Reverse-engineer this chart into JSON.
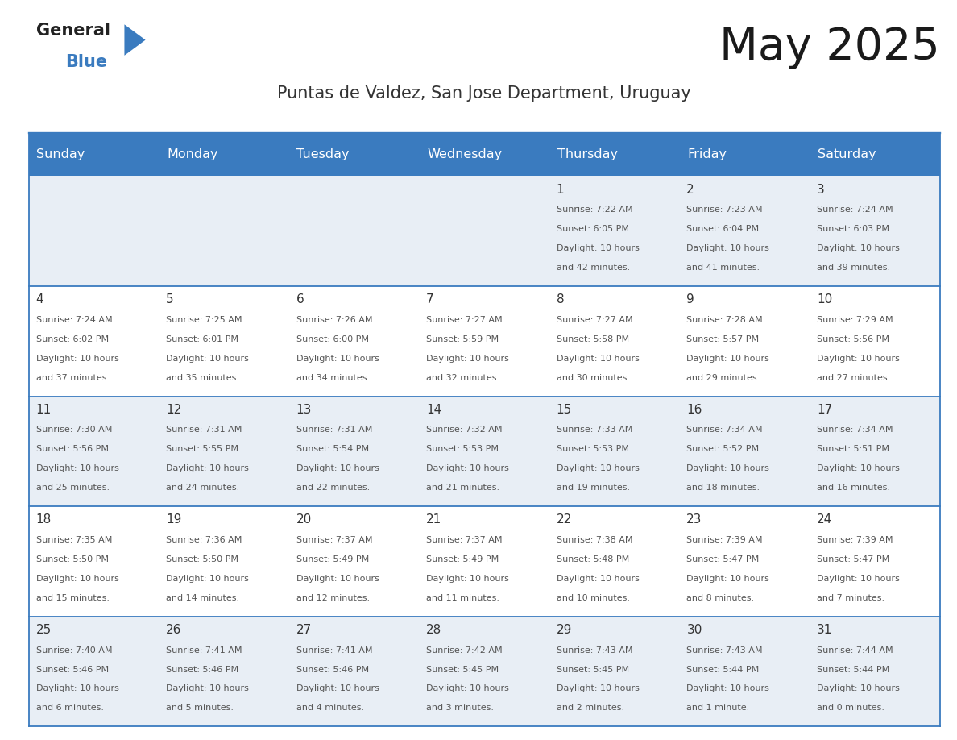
{
  "title": "May 2025",
  "subtitle": "Puntas de Valdez, San Jose Department, Uruguay",
  "days_of_week": [
    "Sunday",
    "Monday",
    "Tuesday",
    "Wednesday",
    "Thursday",
    "Friday",
    "Saturday"
  ],
  "header_bg": "#3a7bbf",
  "header_text_color": "#ffffff",
  "row_bg_light": "#e8eef5",
  "row_bg_white": "#ffffff",
  "grid_line_color": "#3a7bbf",
  "text_color": "#555555",
  "day_num_color": "#333333",
  "title_color": "#1a1a1a",
  "subtitle_color": "#333333",
  "calendar_data": [
    [
      null,
      null,
      null,
      null,
      {
        "day": 1,
        "sunrise": "7:22 AM",
        "sunset": "6:05 PM",
        "daylight": "10 hours",
        "daylight2": "and 42 minutes."
      },
      {
        "day": 2,
        "sunrise": "7:23 AM",
        "sunset": "6:04 PM",
        "daylight": "10 hours",
        "daylight2": "and 41 minutes."
      },
      {
        "day": 3,
        "sunrise": "7:24 AM",
        "sunset": "6:03 PM",
        "daylight": "10 hours",
        "daylight2": "and 39 minutes."
      }
    ],
    [
      {
        "day": 4,
        "sunrise": "7:24 AM",
        "sunset": "6:02 PM",
        "daylight": "10 hours",
        "daylight2": "and 37 minutes."
      },
      {
        "day": 5,
        "sunrise": "7:25 AM",
        "sunset": "6:01 PM",
        "daylight": "10 hours",
        "daylight2": "and 35 minutes."
      },
      {
        "day": 6,
        "sunrise": "7:26 AM",
        "sunset": "6:00 PM",
        "daylight": "10 hours",
        "daylight2": "and 34 minutes."
      },
      {
        "day": 7,
        "sunrise": "7:27 AM",
        "sunset": "5:59 PM",
        "daylight": "10 hours",
        "daylight2": "and 32 minutes."
      },
      {
        "day": 8,
        "sunrise": "7:27 AM",
        "sunset": "5:58 PM",
        "daylight": "10 hours",
        "daylight2": "and 30 minutes."
      },
      {
        "day": 9,
        "sunrise": "7:28 AM",
        "sunset": "5:57 PM",
        "daylight": "10 hours",
        "daylight2": "and 29 minutes."
      },
      {
        "day": 10,
        "sunrise": "7:29 AM",
        "sunset": "5:56 PM",
        "daylight": "10 hours",
        "daylight2": "and 27 minutes."
      }
    ],
    [
      {
        "day": 11,
        "sunrise": "7:30 AM",
        "sunset": "5:56 PM",
        "daylight": "10 hours",
        "daylight2": "and 25 minutes."
      },
      {
        "day": 12,
        "sunrise": "7:31 AM",
        "sunset": "5:55 PM",
        "daylight": "10 hours",
        "daylight2": "and 24 minutes."
      },
      {
        "day": 13,
        "sunrise": "7:31 AM",
        "sunset": "5:54 PM",
        "daylight": "10 hours",
        "daylight2": "and 22 minutes."
      },
      {
        "day": 14,
        "sunrise": "7:32 AM",
        "sunset": "5:53 PM",
        "daylight": "10 hours",
        "daylight2": "and 21 minutes."
      },
      {
        "day": 15,
        "sunrise": "7:33 AM",
        "sunset": "5:53 PM",
        "daylight": "10 hours",
        "daylight2": "and 19 minutes."
      },
      {
        "day": 16,
        "sunrise": "7:34 AM",
        "sunset": "5:52 PM",
        "daylight": "10 hours",
        "daylight2": "and 18 minutes."
      },
      {
        "day": 17,
        "sunrise": "7:34 AM",
        "sunset": "5:51 PM",
        "daylight": "10 hours",
        "daylight2": "and 16 minutes."
      }
    ],
    [
      {
        "day": 18,
        "sunrise": "7:35 AM",
        "sunset": "5:50 PM",
        "daylight": "10 hours",
        "daylight2": "and 15 minutes."
      },
      {
        "day": 19,
        "sunrise": "7:36 AM",
        "sunset": "5:50 PM",
        "daylight": "10 hours",
        "daylight2": "and 14 minutes."
      },
      {
        "day": 20,
        "sunrise": "7:37 AM",
        "sunset": "5:49 PM",
        "daylight": "10 hours",
        "daylight2": "and 12 minutes."
      },
      {
        "day": 21,
        "sunrise": "7:37 AM",
        "sunset": "5:49 PM",
        "daylight": "10 hours",
        "daylight2": "and 11 minutes."
      },
      {
        "day": 22,
        "sunrise": "7:38 AM",
        "sunset": "5:48 PM",
        "daylight": "10 hours",
        "daylight2": "and 10 minutes."
      },
      {
        "day": 23,
        "sunrise": "7:39 AM",
        "sunset": "5:47 PM",
        "daylight": "10 hours",
        "daylight2": "and 8 minutes."
      },
      {
        "day": 24,
        "sunrise": "7:39 AM",
        "sunset": "5:47 PM",
        "daylight": "10 hours",
        "daylight2": "and 7 minutes."
      }
    ],
    [
      {
        "day": 25,
        "sunrise": "7:40 AM",
        "sunset": "5:46 PM",
        "daylight": "10 hours",
        "daylight2": "and 6 minutes."
      },
      {
        "day": 26,
        "sunrise": "7:41 AM",
        "sunset": "5:46 PM",
        "daylight": "10 hours",
        "daylight2": "and 5 minutes."
      },
      {
        "day": 27,
        "sunrise": "7:41 AM",
        "sunset": "5:46 PM",
        "daylight": "10 hours",
        "daylight2": "and 4 minutes."
      },
      {
        "day": 28,
        "sunrise": "7:42 AM",
        "sunset": "5:45 PM",
        "daylight": "10 hours",
        "daylight2": "and 3 minutes."
      },
      {
        "day": 29,
        "sunrise": "7:43 AM",
        "sunset": "5:45 PM",
        "daylight": "10 hours",
        "daylight2": "and 2 minutes."
      },
      {
        "day": 30,
        "sunrise": "7:43 AM",
        "sunset": "5:44 PM",
        "daylight": "10 hours",
        "daylight2": "and 1 minute."
      },
      {
        "day": 31,
        "sunrise": "7:44 AM",
        "sunset": "5:44 PM",
        "daylight": "10 hours",
        "daylight2": "and 0 minutes."
      }
    ]
  ]
}
